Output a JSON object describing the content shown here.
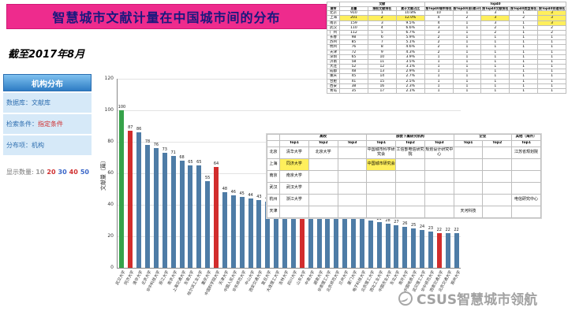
{
  "slide": {
    "title": "智慧城市文献计量在中国城市间的分布",
    "date_note": "截至2017年8月",
    "watermark": "CSUS智慧城市领航"
  },
  "sidebar": {
    "header": "机构分布",
    "items": [
      {
        "label": "数据库：",
        "value": "文献库",
        "value_color": "#2f6fb0"
      },
      {
        "label": "检索条件：",
        "value": "指定条件",
        "value_color": "#d03030"
      },
      {
        "label": "分布项：",
        "value": "机构",
        "value_color": "#2f6fb0"
      }
    ],
    "display_count": {
      "label": "显示数量:",
      "options": [
        {
          "value": "10",
          "color": "#9a9a9a"
        },
        {
          "value": "20",
          "color": "#d03030"
        },
        {
          "value": "30",
          "color": "#3a66c8"
        },
        {
          "value": "40",
          "color": "#d03030"
        },
        {
          "value": "50",
          "color": "#3a66c8"
        }
      ]
    }
  },
  "chart_data": {
    "type": "bar",
    "title": "",
    "xlabel": "",
    "ylabel": "文献量（篇）",
    "ylim": [
      0,
      120
    ],
    "yticks": [
      0,
      20,
      40,
      60,
      80,
      100,
      120
    ],
    "grid": true,
    "legend": "none",
    "categories": [
      "武汉大学",
      "同济大学",
      "清华大学",
      "北京大学",
      "华中科技大学",
      "浙江大学",
      "南京大学",
      "上海交通大学",
      "东南大学",
      "哈尔滨工业大学",
      "重庆大学",
      "中国科学院大学",
      "天津大学",
      "中国人民大学",
      "华东师范大学",
      "中山大学",
      "西安交通大学",
      "复旦大学",
      "大连理工大学",
      "吉林大学",
      "四川大学",
      "山东大学",
      "中南大学",
      "湖南大学",
      "华南理工大学",
      "北京师范大学",
      "兰州大学",
      "厦门大学",
      "电子科技大学",
      "北京理工大学",
      "西北工业大学",
      "中国农业大学",
      "东北大学",
      "南开大学",
      "中国地质大学",
      "武汉理工大学",
      "华中师范大学",
      "西南交通大学",
      "北京交通大学",
      "郑州大学"
    ],
    "values": [
      100,
      87,
      86,
      78,
      76,
      73,
      71,
      68,
      65,
      65,
      55,
      64,
      48,
      46,
      45,
      44,
      43,
      42,
      41,
      40,
      40,
      40,
      38,
      37,
      36,
      35,
      34,
      33,
      32,
      30,
      29,
      28,
      27,
      26,
      25,
      24,
      23,
      22,
      22,
      22
    ],
    "default_color": "#4e7ca6",
    "colored_bars": {
      "0": "#36a24a",
      "1": "#d22d2d",
      "11": "#d22d2d",
      "21": "#d22d2d",
      "37": "#d22d2d"
    }
  },
  "city_table": {
    "col_groups": [
      {
        "label": "",
        "span": 1
      },
      {
        "label": "文献",
        "span": 3
      },
      {
        "label": "Top40",
        "span": 5
      }
    ],
    "columns": [
      "城市",
      "总量",
      "授权文献排名",
      "累计文献占比",
      "按Top40城市排名",
      "按Top40(前)累计排名",
      "按Top40文献排名",
      "按Top40类型排名",
      "按Top40受理排名"
    ],
    "rows": [
      [
        "北京",
        "910",
        "1",
        "10.8%",
        "10",
        "1",
        "3",
        "1",
        "3"
      ],
      [
        "上海",
        "201",
        "2",
        "12.0%",
        "4",
        "2",
        "3",
        "2",
        "3"
      ],
      [
        "南京",
        "159",
        "3",
        "9.5%",
        "4",
        "1",
        "3",
        "1",
        "3"
      ],
      [
        "武汉",
        "110",
        "4",
        "6.6%",
        "3",
        "1",
        "2",
        "1",
        "2"
      ],
      [
        "广州",
        "112",
        "5",
        "6.7%",
        "3",
        "1",
        "2",
        "1",
        "2"
      ],
      [
        "长春",
        "98",
        "6",
        "5.9%",
        "2",
        "1",
        "1",
        "1",
        "1"
      ],
      [
        "苏州",
        "85",
        "7",
        "5.1%",
        "2",
        "1",
        "1",
        "1",
        "1"
      ],
      [
        "杭州",
        "76",
        "8",
        "4.6%",
        "2",
        "1",
        "1",
        "1",
        "1"
      ],
      [
        "天津",
        "72",
        "9",
        "4.3%",
        "2",
        "1",
        "1",
        "1",
        "1"
      ],
      [
        "深圳",
        "65",
        "10",
        "3.9%",
        "1",
        "1",
        "1",
        "1",
        "1"
      ],
      [
        "济南",
        "58",
        "11",
        "3.5%",
        "1",
        "1",
        "1",
        "1",
        "1"
      ],
      [
        "大连",
        "52",
        "12",
        "3.1%",
        "1",
        "1",
        "1",
        "1",
        "1"
      ],
      [
        "成都",
        "48",
        "13",
        "2.9%",
        "1",
        "1",
        "1",
        "1",
        "1"
      ],
      [
        "重庆",
        "45",
        "14",
        "2.7%",
        "1",
        "1",
        "1",
        "1",
        "1"
      ],
      [
        "合肥",
        "41",
        "15",
        "2.5%",
        "1",
        "1",
        "1",
        "1",
        "1"
      ],
      [
        "西安",
        "38",
        "16",
        "2.3%",
        "1",
        "1",
        "1",
        "1",
        "1"
      ],
      [
        "青岛",
        "35",
        "17",
        "2.1%",
        "1",
        "1",
        "1",
        "1",
        "1"
      ]
    ],
    "highlights": [
      [
        1,
        1
      ],
      [
        1,
        2
      ],
      [
        1,
        3
      ],
      [
        1,
        6
      ],
      [
        0,
        8
      ],
      [
        1,
        8
      ],
      [
        2,
        8
      ]
    ]
  },
  "org_table": {
    "col_groups": [
      {
        "label": "",
        "span": 1
      },
      {
        "label": "高校",
        "span": 3
      },
      {
        "label": "部委下属研究机构",
        "span": 3
      },
      {
        "label": "企业",
        "span": 2
      },
      {
        "label": "其他（海外）",
        "span": 1
      }
    ],
    "columns": [
      "",
      "Top1",
      "Top2",
      "Top3",
      "Top1",
      "Top2",
      "Top3",
      "Top1",
      "Top2",
      "Top1"
    ],
    "rows": [
      [
        "北京",
        "清华大学",
        "北京大学",
        "",
        "中国城市科学研究会",
        "工信部电信研究院",
        "规划设计研究中心",
        "",
        "",
        "江苏省规划院"
      ],
      [
        "上海",
        "同济大学",
        "",
        "",
        "中国城市研究会",
        "",
        "",
        "",
        "",
        ""
      ],
      [
        "南京",
        "南京大学",
        "",
        "",
        "",
        "",
        "",
        "",
        "",
        ""
      ],
      [
        "武汉",
        "武汉大学",
        "",
        "",
        "",
        "",
        "",
        "",
        "",
        ""
      ],
      [
        "杭州",
        "浙江大学",
        "",
        "",
        "",
        "",
        "",
        "",
        "",
        "电信研究中心"
      ],
      [
        "天津",
        "",
        "",
        "",
        "",
        "",
        "",
        "天河科技",
        "",
        ""
      ]
    ],
    "highlights": [
      [
        1,
        1
      ],
      [
        1,
        4
      ]
    ]
  }
}
